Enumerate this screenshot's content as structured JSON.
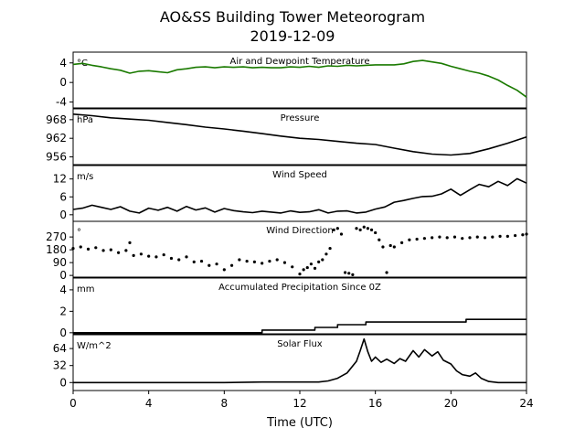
{
  "figure": {
    "title": "AO&SS Building Tower Meteorogram",
    "subtitle": "2019-12-09",
    "xlabel": "Time (UTC)"
  },
  "chart_data": [
    {
      "type": "line",
      "title": "Air and Dewpoint Temperature",
      "unit": "°C",
      "xlim": [
        0,
        24
      ],
      "ylim": [
        -5.2,
        6.2
      ],
      "yticks": [
        -4,
        0,
        4
      ],
      "color": "#1a7a00",
      "series": [
        {
          "x": [
            0,
            0.5,
            1,
            1.5,
            2,
            2.5,
            3,
            3.5,
            4,
            4.5,
            5,
            5.5,
            6,
            6.5,
            7,
            7.5,
            8,
            8.5,
            9,
            9.5,
            10,
            10.5,
            11,
            11.5,
            12,
            12.5,
            13,
            13.5,
            14,
            14.5,
            15,
            15.5,
            16,
            16.5,
            17,
            17.5,
            18,
            18.5,
            19,
            19.5,
            20,
            20.5,
            21,
            21.5,
            22,
            22.5,
            23,
            23.5,
            24
          ],
          "y": [
            3.7,
            3.9,
            3.5,
            3.2,
            2.8,
            2.5,
            1.9,
            2.3,
            2.4,
            2.2,
            2.0,
            2.6,
            2.8,
            3.1,
            3.2,
            3.0,
            3.2,
            3.1,
            3.2,
            3.0,
            3.1,
            3.0,
            3.0,
            3.2,
            3.1,
            3.3,
            3.1,
            3.4,
            3.3,
            3.5,
            3.4,
            3.5,
            3.6,
            3.6,
            3.6,
            3.8,
            4.3,
            4.5,
            4.2,
            3.9,
            3.3,
            2.8,
            2.3,
            1.9,
            1.3,
            0.5,
            -0.6,
            -1.6,
            -3.0
          ]
        }
      ]
    },
    {
      "type": "line",
      "title": "Pressure",
      "unit": "hPa",
      "xlim": [
        0,
        24
      ],
      "ylim": [
        953.5,
        971.5
      ],
      "yticks": [
        956,
        962,
        968
      ],
      "color": "#000000",
      "series": [
        {
          "x": [
            0,
            1,
            2,
            3,
            4,
            5,
            6,
            7,
            8,
            9,
            10,
            11,
            12,
            13,
            14,
            15,
            16,
            17,
            18,
            19,
            20,
            21,
            22,
            23,
            24
          ],
          "y": [
            969.8,
            969.3,
            968.6,
            968.2,
            967.8,
            967.1,
            966.4,
            965.6,
            965.0,
            964.3,
            963.5,
            962.7,
            962.0,
            961.6,
            961.0,
            960.4,
            960.0,
            958.8,
            957.7,
            956.9,
            956.6,
            957.1,
            958.6,
            960.4,
            962.4
          ]
        }
      ]
    },
    {
      "type": "line",
      "title": "Wind Speed",
      "unit": "m/s",
      "xlim": [
        0,
        24
      ],
      "ylim": [
        -2.2,
        16.5
      ],
      "yticks": [
        0,
        6,
        12
      ],
      "color": "#000000",
      "series": [
        {
          "x": [
            0,
            0.5,
            1,
            1.5,
            2,
            2.5,
            3,
            3.5,
            4,
            4.5,
            5,
            5.5,
            6,
            6.5,
            7,
            7.5,
            8,
            8.5,
            9,
            9.5,
            10,
            10.5,
            11,
            11.5,
            12,
            12.5,
            13,
            13.5,
            14,
            14.5,
            15,
            15.5,
            16,
            16.5,
            17,
            17.5,
            18,
            18.5,
            19,
            19.5,
            20,
            20.5,
            21,
            21.5,
            22,
            22.5,
            23,
            23.5,
            24
          ],
          "y": [
            1.8,
            2.2,
            3.2,
            2.5,
            1.8,
            2.7,
            1.2,
            0.6,
            2.2,
            1.5,
            2.5,
            1.2,
            2.8,
            1.6,
            2.3,
            0.9,
            2.1,
            1.4,
            1.0,
            0.7,
            1.2,
            0.9,
            0.6,
            1.3,
            0.8,
            1.0,
            1.7,
            0.6,
            1.2,
            1.3,
            0.6,
            0.9,
            1.9,
            2.6,
            4.2,
            4.8,
            5.5,
            6.1,
            6.2,
            7.0,
            8.6,
            6.5,
            8.4,
            10.2,
            9.4,
            11.2,
            9.8,
            12.1,
            10.6
          ]
        }
      ]
    },
    {
      "type": "scatter",
      "title": "Wind Direction",
      "unit": "°",
      "xlim": [
        0,
        24
      ],
      "ylim": [
        -12,
        380
      ],
      "yticks": [
        0,
        90,
        180,
        270
      ],
      "color": "#000000",
      "series": [
        {
          "x": [
            0,
            0.4,
            0.8,
            1.2,
            1.6,
            2,
            2.4,
            2.8,
            3,
            3.2,
            3.6,
            4,
            4.4,
            4.8,
            5.2,
            5.6,
            6,
            6.4,
            6.8,
            7.2,
            7.6,
            8,
            8.4,
            8.8,
            9.2,
            9.6,
            10,
            10.4,
            10.8,
            11.2,
            11.6,
            12,
            12.2,
            12.4,
            12.6,
            12.8,
            13,
            13.2,
            13.4,
            13.6,
            13.8,
            14,
            14.2,
            14.4,
            14.6,
            14.8,
            15,
            15.2,
            15.4,
            15.6,
            15.8,
            16,
            16.2,
            16.4,
            16.6,
            16.8,
            17,
            17.4,
            17.8,
            18.2,
            18.6,
            19,
            19.4,
            19.8,
            20.2,
            20.6,
            21,
            21.4,
            21.8,
            22.2,
            22.6,
            23,
            23.4,
            23.8,
            24
          ],
          "y": [
            190,
            200,
            185,
            195,
            175,
            180,
            160,
            175,
            230,
            140,
            150,
            135,
            130,
            145,
            120,
            110,
            130,
            95,
            100,
            70,
            80,
            40,
            70,
            110,
            100,
            95,
            85,
            100,
            110,
            90,
            60,
            10,
            40,
            55,
            80,
            50,
            95,
            110,
            150,
            190,
            320,
            330,
            290,
            20,
            15,
            5,
            330,
            320,
            340,
            330,
            320,
            300,
            250,
            200,
            20,
            210,
            200,
            230,
            250,
            255,
            260,
            265,
            270,
            265,
            270,
            260,
            265,
            270,
            265,
            270,
            275,
            275,
            280,
            285,
            290
          ]
        }
      ]
    },
    {
      "type": "line",
      "title": "Accumulated Precipitation Since 0Z",
      "unit": "mm",
      "xlim": [
        0,
        24
      ],
      "ylim": [
        -0.1,
        5.1
      ],
      "yticks": [
        0,
        2,
        4
      ],
      "color": "#000000",
      "series": [
        {
          "x": [
            0,
            10,
            10,
            12.8,
            12.8,
            14,
            14,
            15.5,
            15.5,
            20.8,
            20.8,
            24
          ],
          "y": [
            0,
            0,
            0.25,
            0.25,
            0.5,
            0.5,
            0.75,
            0.75,
            1.0,
            1.0,
            1.25,
            1.25
          ]
        }
      ]
    },
    {
      "type": "line",
      "title": "Solar Flux",
      "unit": "W/m^2",
      "xlim": [
        0,
        24
      ],
      "ylim": [
        -15,
        90
      ],
      "yticks": [
        0,
        32,
        64
      ],
      "color": "#000000",
      "series": [
        {
          "x": [
            0,
            2,
            4,
            6,
            8,
            10,
            12,
            13,
            13.5,
            14,
            14.5,
            15,
            15.2,
            15.4,
            15.6,
            15.8,
            16,
            16.3,
            16.6,
            17,
            17.3,
            17.6,
            18,
            18.3,
            18.6,
            19,
            19.3,
            19.6,
            20,
            20.3,
            20.6,
            21,
            21.3,
            21.6,
            22,
            22.5,
            23,
            24
          ],
          "y": [
            0,
            0,
            0,
            0,
            0,
            1,
            1,
            1,
            3,
            8,
            18,
            40,
            60,
            82,
            58,
            40,
            48,
            38,
            44,
            36,
            45,
            40,
            60,
            48,
            62,
            50,
            58,
            42,
            35,
            22,
            15,
            12,
            18,
            8,
            2,
            0,
            0,
            0
          ]
        }
      ]
    }
  ]
}
